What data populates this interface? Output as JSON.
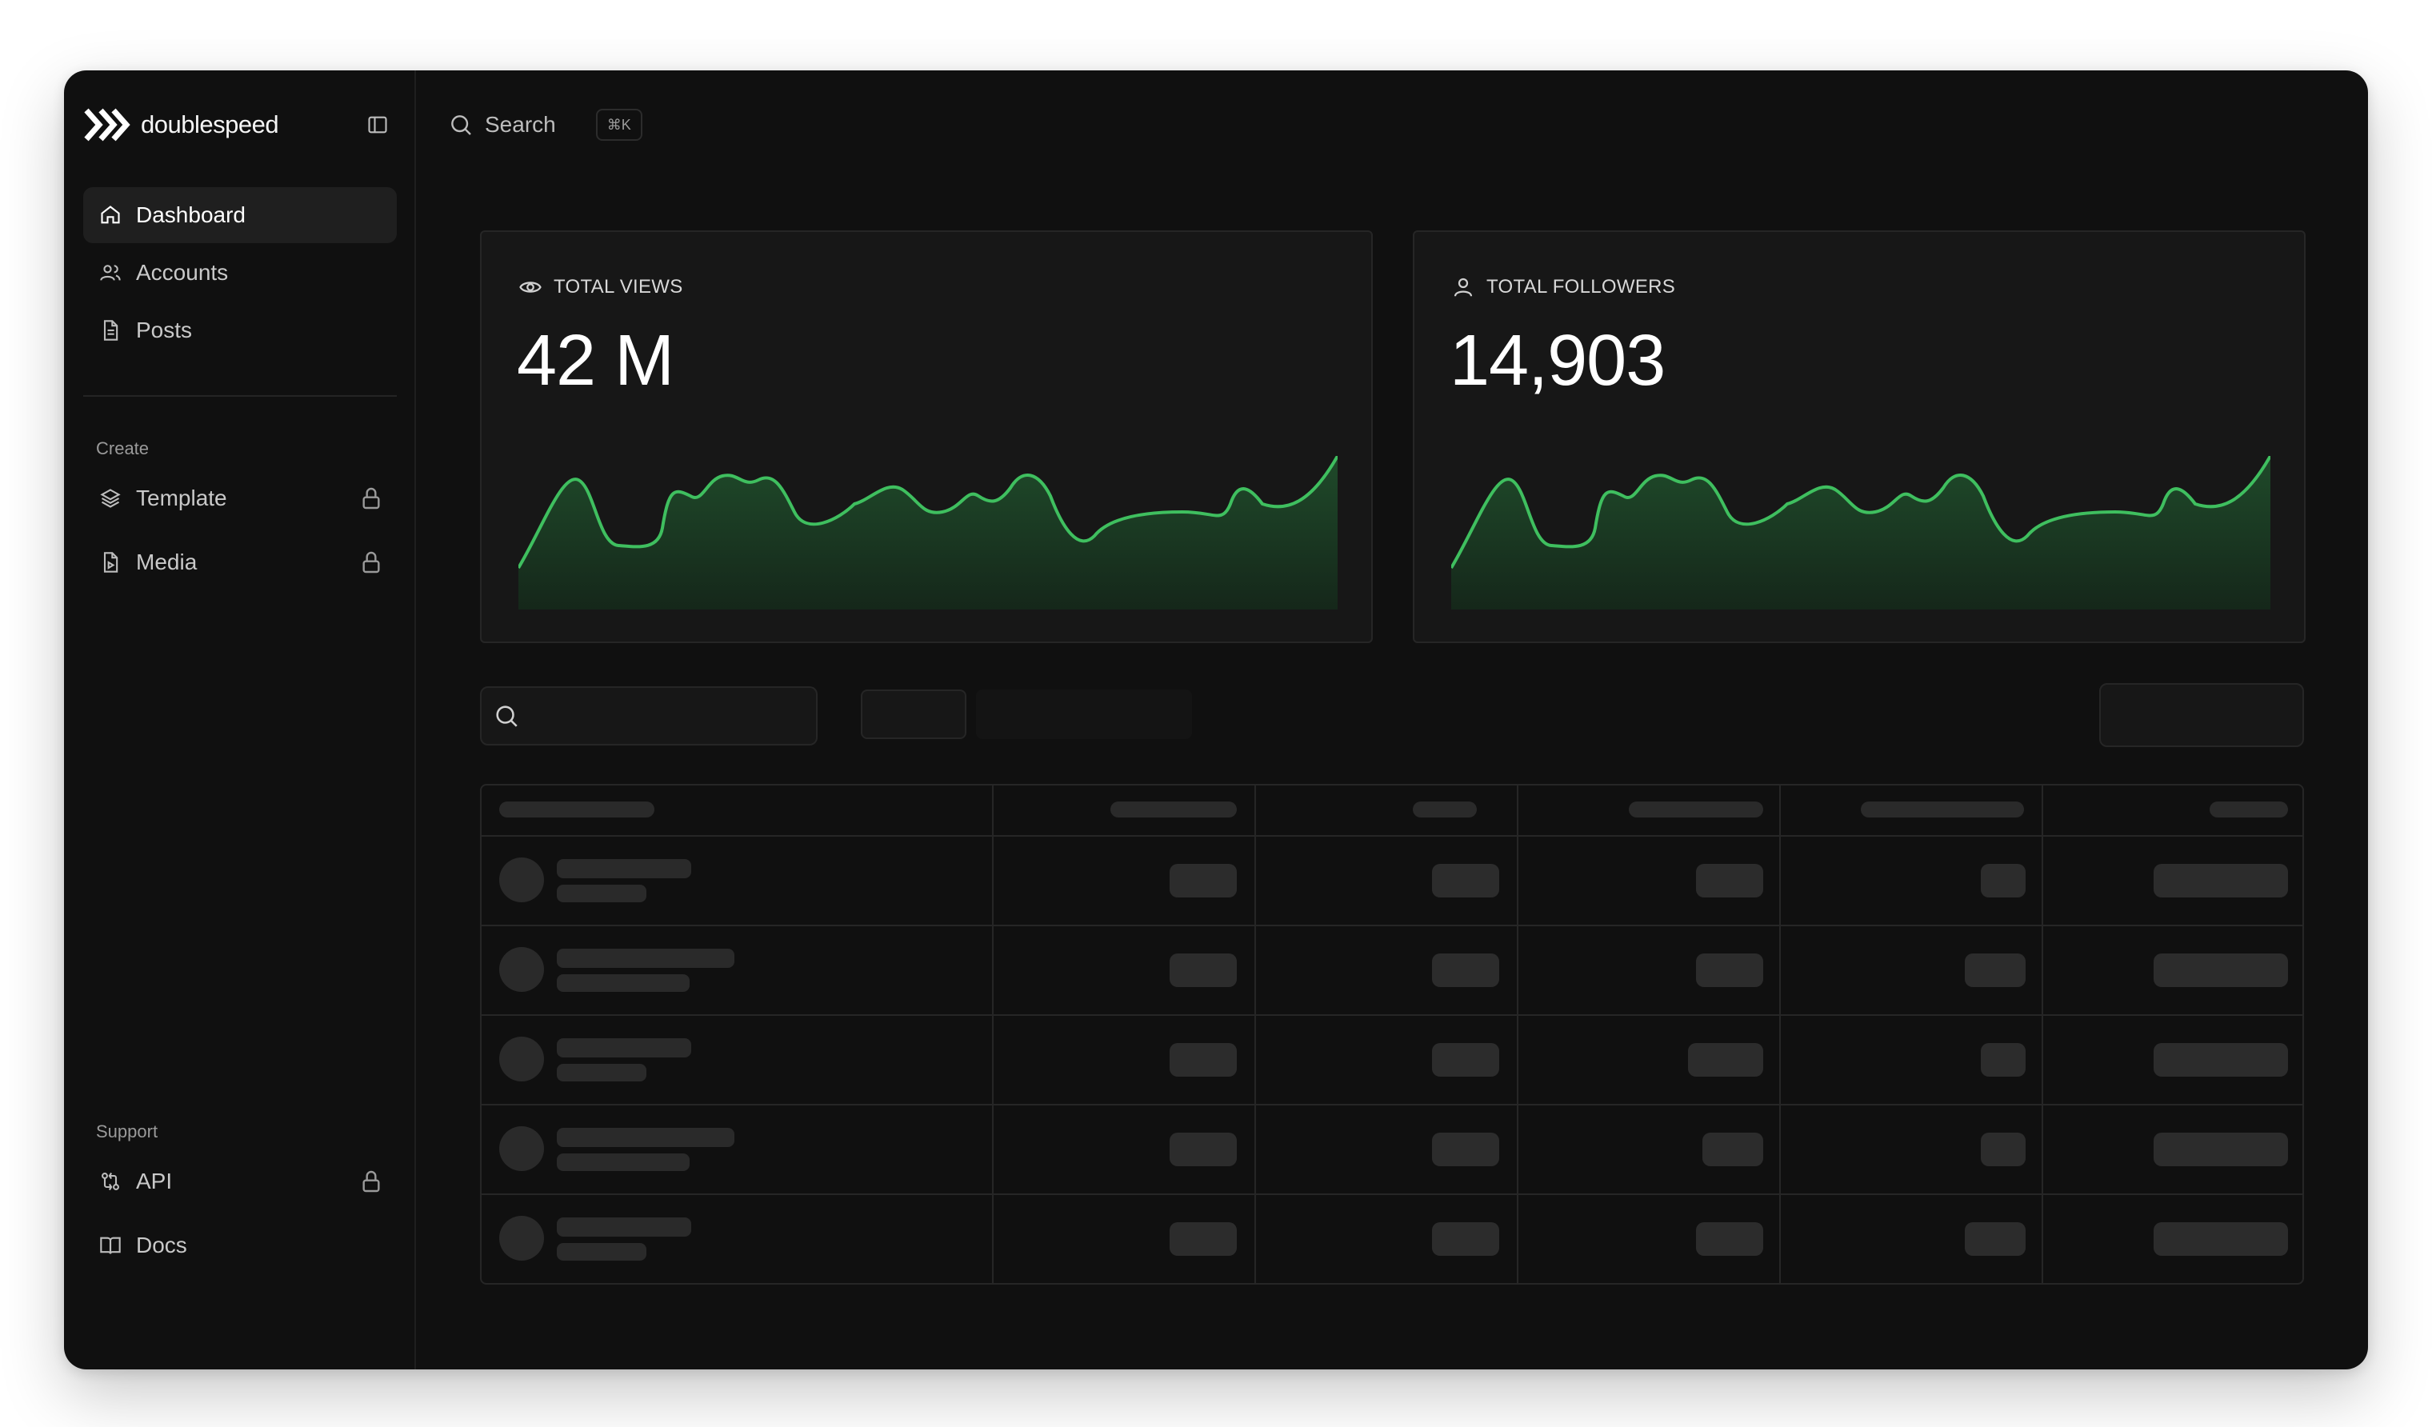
{
  "brand": {
    "name": "doublespeed"
  },
  "sidebar": {
    "nav": [
      {
        "label": "Dashboard",
        "icon": "home-icon",
        "active": true
      },
      {
        "label": "Accounts",
        "icon": "users-icon"
      },
      {
        "label": "Posts",
        "icon": "file-icon"
      }
    ],
    "create": {
      "label": "Create",
      "items": [
        {
          "label": "Template",
          "icon": "layers-icon",
          "locked": true
        },
        {
          "label": "Media",
          "icon": "file-media-icon",
          "locked": true
        }
      ]
    },
    "support": {
      "label": "Support",
      "items": [
        {
          "label": "API",
          "icon": "git-compare-icon",
          "locked": true
        },
        {
          "label": "Docs",
          "icon": "book-icon",
          "locked": false
        }
      ]
    }
  },
  "topbar": {
    "search_label": "Search",
    "shortcut": "⌘K"
  },
  "stats": {
    "views": {
      "label": "TOTAL VIEWS",
      "value": "42 M",
      "icon": "eye-icon"
    },
    "followers": {
      "label": "TOTAL FOLLOWERS",
      "value": "14,903",
      "icon": "user-icon"
    }
  },
  "colors": {
    "accent": "#3fbf5f",
    "accent_fill": "#1a3a22",
    "background": "#101010",
    "card": "#171717"
  },
  "table": {
    "rows": 5,
    "columns": 6,
    "state": "loading-skeleton"
  }
}
